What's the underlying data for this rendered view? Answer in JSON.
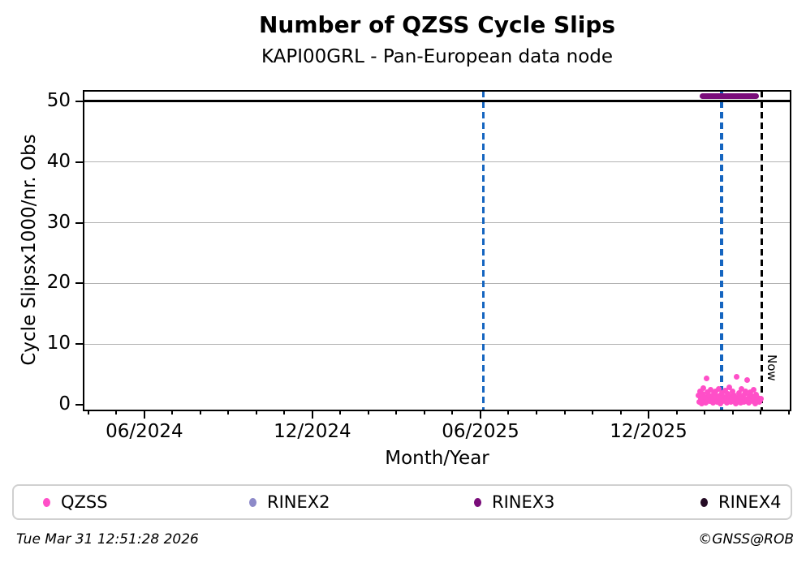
{
  "page": {
    "footer_left": "Tue Mar 31 12:51:28 2026",
    "footer_right": "©GNSS@ROB"
  },
  "colors": {
    "qzss": "#ff4fc8",
    "rinex2": "#8d8ac9",
    "rinex3": "#7a0d7a",
    "rinex4": "#250c25",
    "event_line_blue": "#1565c0",
    "now_line": "#000000",
    "grid": "#b3b3b3",
    "axis": "#000000",
    "legend_border": "#d0d0d0"
  },
  "legend": {
    "items": [
      {
        "label": "QZSS",
        "color_key": "qzss"
      },
      {
        "label": "RINEX2",
        "color_key": "rinex2"
      },
      {
        "label": "RINEX3",
        "color_key": "rinex3"
      },
      {
        "label": "RINEX4",
        "color_key": "rinex4"
      }
    ]
  },
  "chart_data": {
    "type": "scatter",
    "title": "Number of QZSS Cycle Slips",
    "subtitle": "KAPI00GRL - Pan-European data node",
    "xlabel": "Month/Year",
    "ylabel": "Cycle Slipsx1000/nr. Obs",
    "x_axis": {
      "unit": "months after 2024-06",
      "lim": [
        -2.17,
        23.07
      ],
      "major_ticks": [
        {
          "m": 0,
          "label": "06/2024"
        },
        {
          "m": 6,
          "label": "12/2024"
        },
        {
          "m": 12,
          "label": "06/2025"
        },
        {
          "m": 18,
          "label": "12/2025"
        }
      ],
      "minor_tick_step_months": 1
    },
    "y_axis": {
      "lim": [
        -0.87,
        51.67
      ],
      "ticks": [
        0,
        10,
        20,
        30,
        40,
        50
      ]
    },
    "grid": "horizontal-only",
    "black_reference_hline_y": 50,
    "now_label": "Now",
    "reference_vlines": [
      {
        "name": "event-line-1",
        "m": 12.1,
        "style": "dashed",
        "color_key": "event_line_blue"
      },
      {
        "name": "event-line-2",
        "m": 20.6,
        "style": "dashed",
        "color_key": "event_line_blue"
      },
      {
        "name": "now-line",
        "m": 22.04,
        "style": "dashed",
        "color_key": "now_line"
      }
    ],
    "series": [
      {
        "name": "QZSS",
        "color_key": "qzss",
        "kind": "scatter",
        "points": [
          [
            19.78,
            1.6
          ],
          [
            19.81,
            0.5
          ],
          [
            19.84,
            2.3
          ],
          [
            19.87,
            1.1
          ],
          [
            19.9,
            0.3
          ],
          [
            19.93,
            1.9
          ],
          [
            19.96,
            2.8
          ],
          [
            19.99,
            0.8
          ],
          [
            20.02,
            1.3
          ],
          [
            20.05,
            0.4
          ],
          [
            20.08,
            4.4
          ],
          [
            20.11,
            2.1
          ],
          [
            20.14,
            0.9
          ],
          [
            20.17,
            1.6
          ],
          [
            20.2,
            0.6
          ],
          [
            20.23,
            2.5
          ],
          [
            20.26,
            1.2
          ],
          [
            20.29,
            0.4
          ],
          [
            20.32,
            1.8
          ],
          [
            20.35,
            0.7
          ],
          [
            20.38,
            2.2
          ],
          [
            20.41,
            1.0
          ],
          [
            20.44,
            0.5
          ],
          [
            20.47,
            1.5
          ],
          [
            20.5,
            2.7
          ],
          [
            20.53,
            0.9
          ],
          [
            20.56,
            0.3
          ],
          [
            20.59,
            1.7
          ],
          [
            20.62,
            2.0
          ],
          [
            20.65,
            0.6
          ],
          [
            20.68,
            1.3
          ],
          [
            20.71,
            0.8
          ],
          [
            20.74,
            2.4
          ],
          [
            20.77,
            1.1
          ],
          [
            20.8,
            0.4
          ],
          [
            20.83,
            1.9
          ],
          [
            20.86,
            0.7
          ],
          [
            20.89,
            2.9
          ],
          [
            20.92,
            1.4
          ],
          [
            20.95,
            0.5
          ],
          [
            20.98,
            1.0
          ],
          [
            21.01,
            2.2
          ],
          [
            21.04,
            0.8
          ],
          [
            21.07,
            1.6
          ],
          [
            21.1,
            0.3
          ],
          [
            21.13,
            4.6
          ],
          [
            21.16,
            1.2
          ],
          [
            21.19,
            0.6
          ],
          [
            21.22,
            2.0
          ],
          [
            21.25,
            1.5
          ],
          [
            21.28,
            0.4
          ],
          [
            21.31,
            2.6
          ],
          [
            21.34,
            0.9
          ],
          [
            21.37,
            1.3
          ],
          [
            21.4,
            0.5
          ],
          [
            21.43,
            1.8
          ],
          [
            21.46,
            2.3
          ],
          [
            21.49,
            0.7
          ],
          [
            21.52,
            4.1
          ],
          [
            21.55,
            1.1
          ],
          [
            21.58,
            0.4
          ],
          [
            21.61,
            1.6
          ],
          [
            21.64,
            2.1
          ],
          [
            21.67,
            0.8
          ],
          [
            21.7,
            1.4
          ],
          [
            21.73,
            0.6
          ],
          [
            21.76,
            2.5
          ],
          [
            21.79,
            1.0
          ],
          [
            21.82,
            0.3
          ],
          [
            21.85,
            1.7
          ],
          [
            21.88,
            0.9
          ],
          [
            21.91,
            1.2
          ],
          [
            21.94,
            0.5
          ],
          [
            21.97,
            0.8
          ],
          [
            22.0,
            1.1
          ]
        ]
      },
      {
        "name": "RINEX2",
        "color_key": "rinex2",
        "kind": "scatter",
        "points": []
      },
      {
        "name": "RINEX3",
        "color_key": "rinex3",
        "kind": "thick-segment",
        "segments": [
          {
            "x_start": 19.83,
            "x_end": 21.93,
            "y": 50.8
          }
        ]
      },
      {
        "name": "RINEX4",
        "color_key": "rinex4",
        "kind": "scatter",
        "points": []
      }
    ]
  }
}
